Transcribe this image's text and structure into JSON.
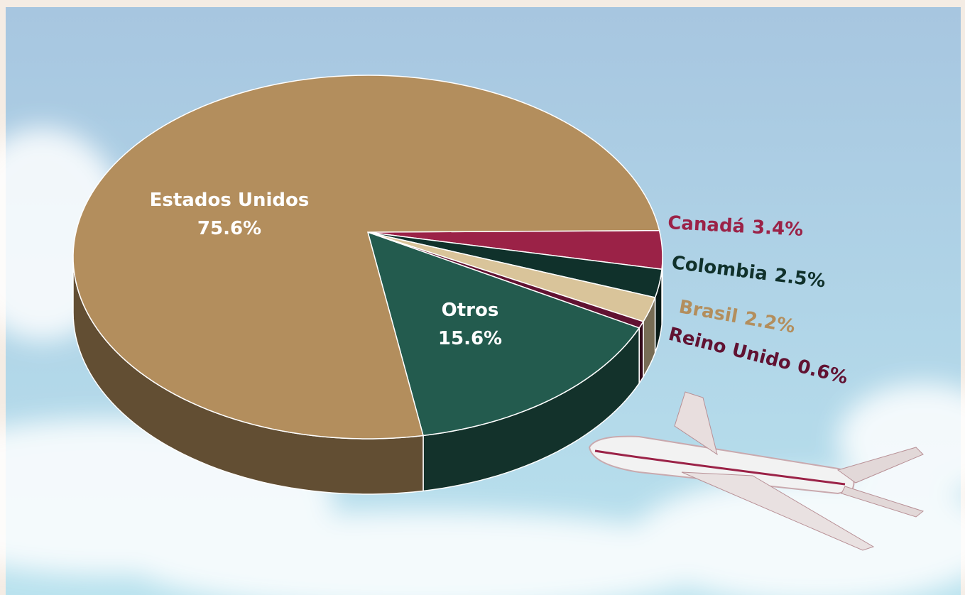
{
  "chart_data": {
    "type": "pie",
    "categories": [
      "Canadá",
      "Colombia",
      "Brasil",
      "Reino Unido",
      "Otros",
      "Estados Unidos"
    ],
    "values": [
      3.4,
      2.5,
      2.2,
      0.6,
      15.6,
      75.6
    ],
    "value_labels": [
      "3.4%",
      "2.5%",
      "2.2%",
      "0.6%",
      "15.6%",
      "75.6%"
    ],
    "colors": [
      "#9b2247",
      "#10312b",
      "#d9c49a",
      "#611232",
      "#235b4e",
      "#b38e5d"
    ],
    "label_colors": [
      "#9b2247",
      "#10312b",
      "#b38e5d",
      "#611232",
      "#ffffff",
      "#ffffff"
    ]
  }
}
